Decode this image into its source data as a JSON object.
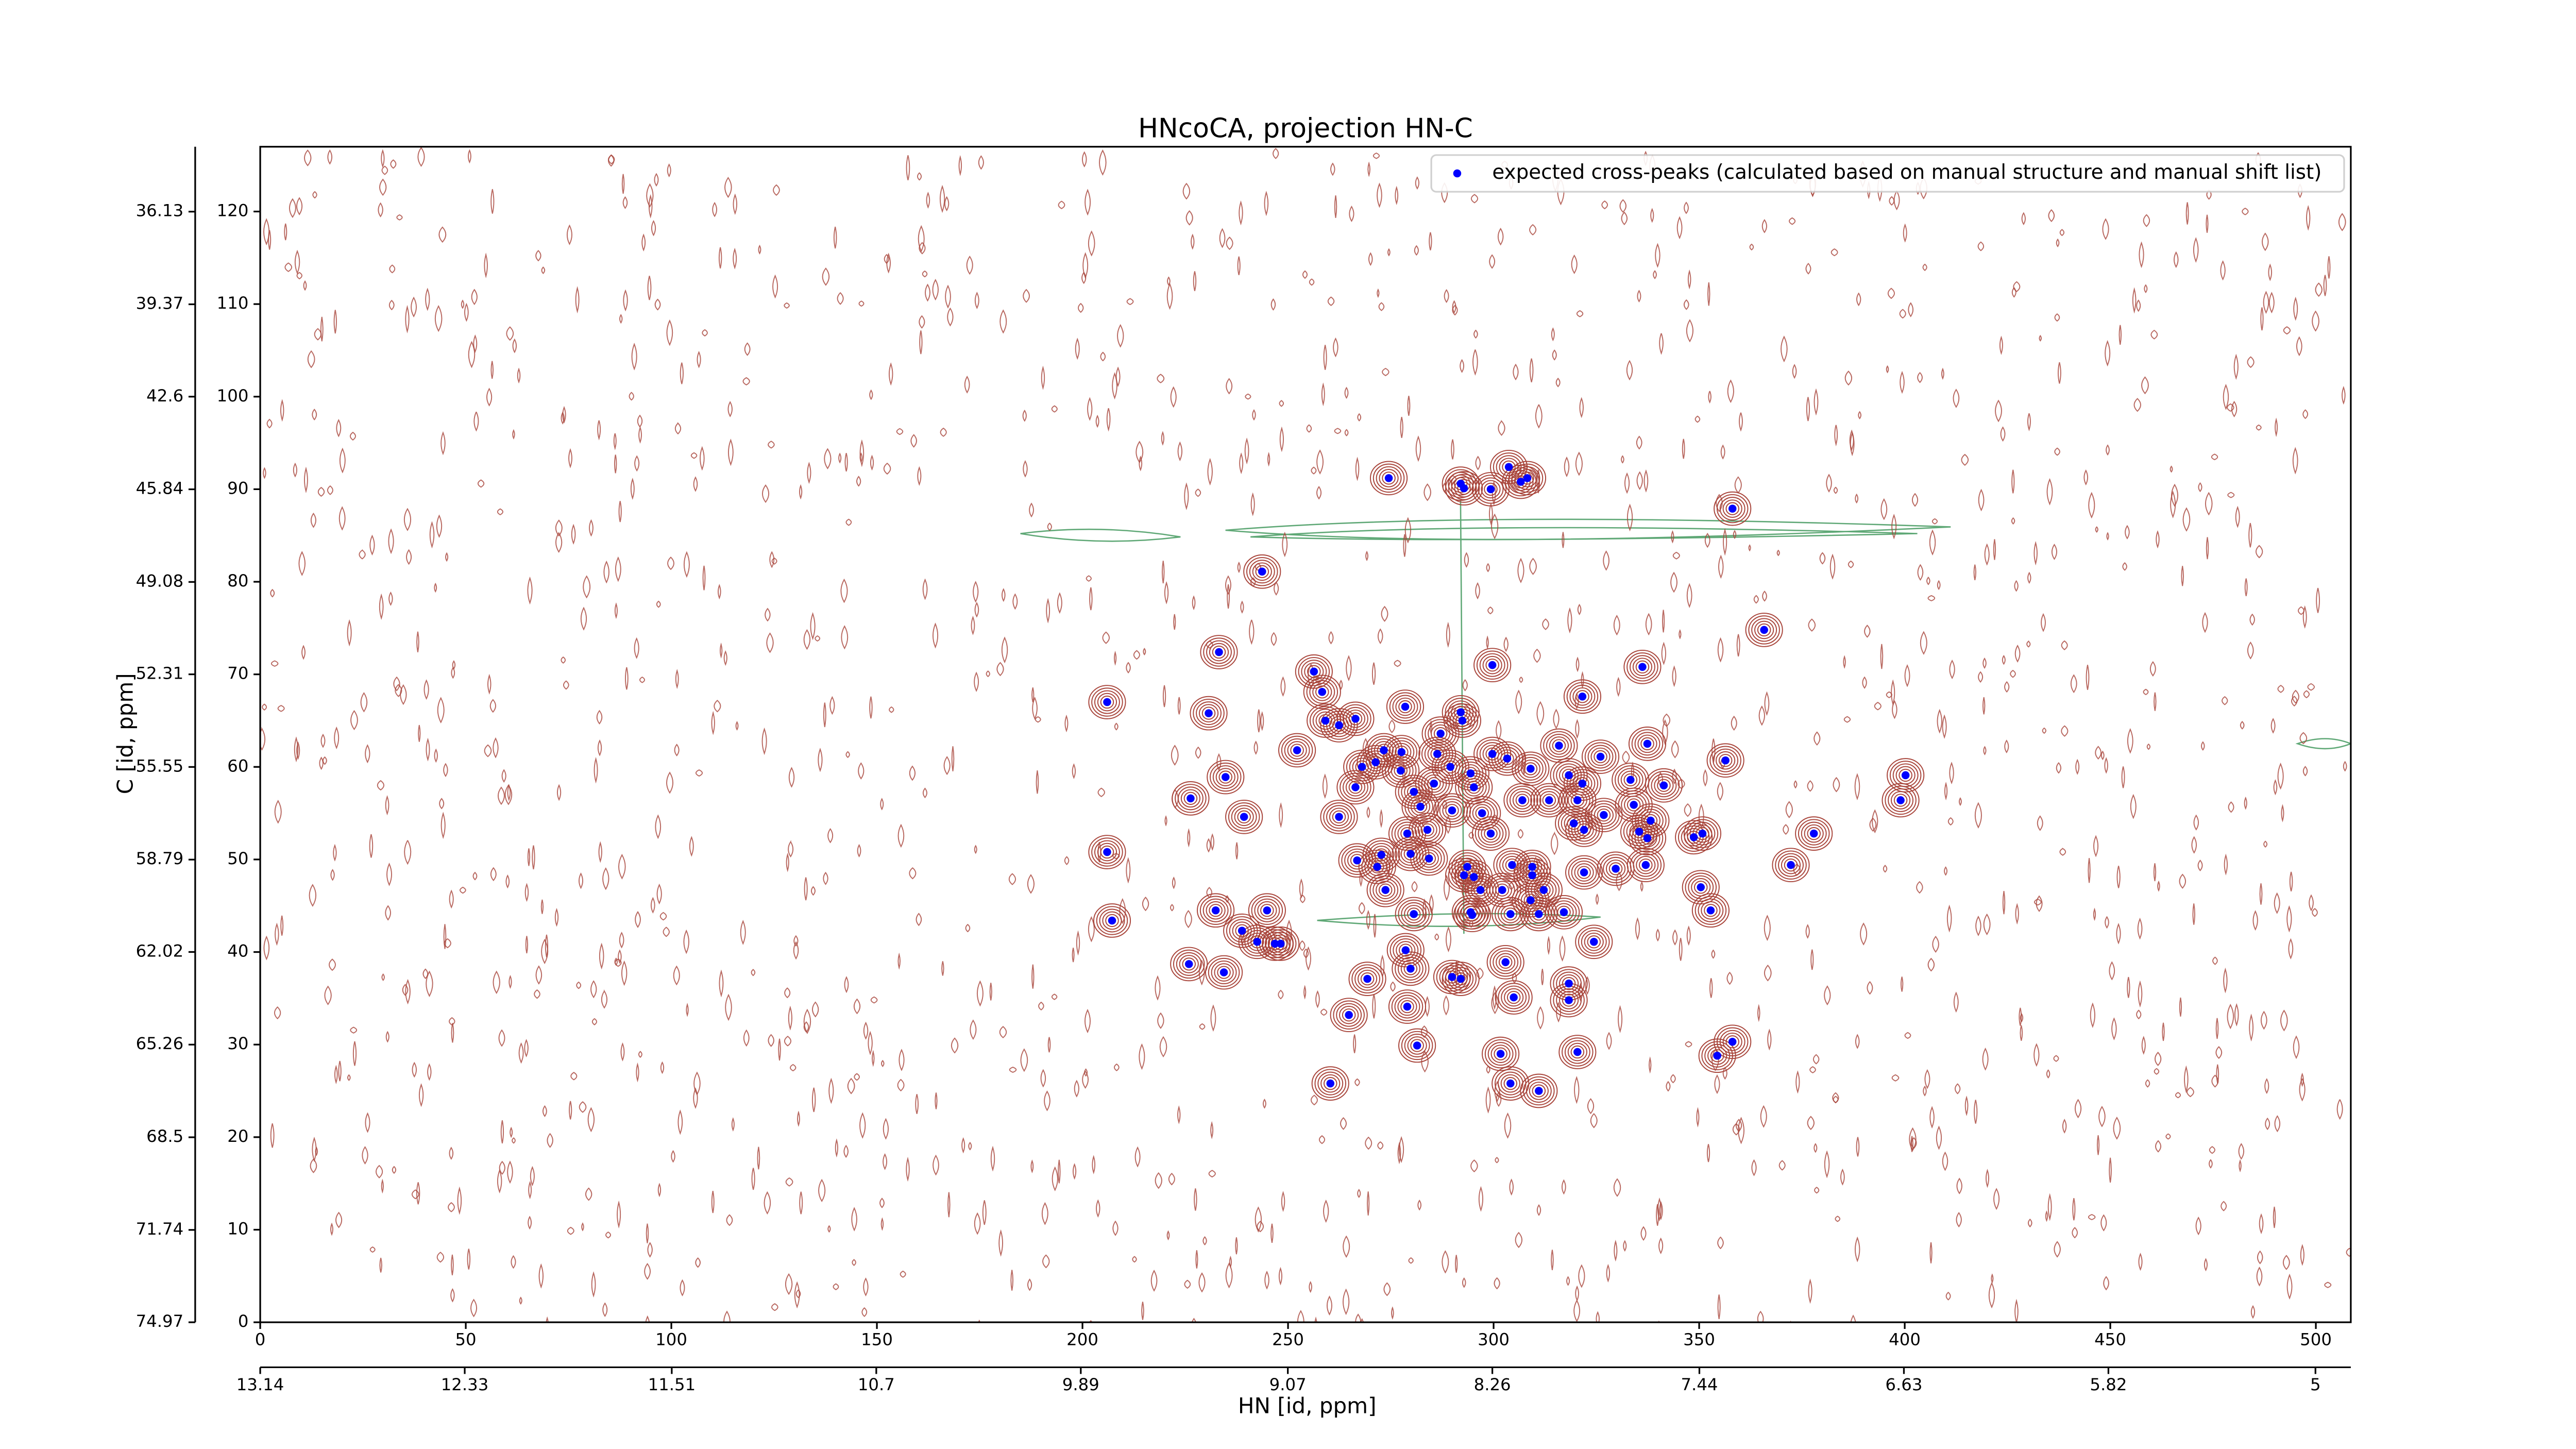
{
  "chart_data": {
    "type": "scatter",
    "title": "HNcoCA, projection HN-C",
    "xlabel": "HN [id, ppm]",
    "ylabel": "C [id, ppm]",
    "xlim": [
      0,
      508.5
    ],
    "xticks": [
      0,
      50,
      100,
      150,
      200,
      250,
      300,
      350,
      400,
      450,
      500
    ],
    "ylim": [
      0,
      127
    ],
    "yticks": [
      0,
      10,
      20,
      30,
      40,
      50,
      60,
      70,
      80,
      90,
      100,
      110,
      120
    ],
    "x2lim": [
      13.14,
      4.86
    ],
    "x2ticks": [
      13.14,
      12.33,
      11.51,
      10.7,
      9.89,
      9.07,
      8.26,
      7.44,
      6.63,
      5.82,
      5.0
    ],
    "y2lim": [
      74.97,
      33.86
    ],
    "y2ticks": [
      74.97,
      71.74,
      68.5,
      65.26,
      62.02,
      58.79,
      55.55,
      52.31,
      49.08,
      45.84,
      42.6,
      39.37,
      36.13
    ],
    "legend": "upper right",
    "series": [
      {
        "name": "expected cross-peaks (calculated based on manual structure and manual shift list)",
        "color": "#0000ff",
        "x": [
          274.5,
          292.0,
          292.8,
          303.7,
          308.2,
          306.6,
          299.3,
          243.7,
          358.1,
          365.8,
          233.2,
          299.7,
          336.2,
          256.3,
          206.0,
          230.7,
          258.3,
          278.5,
          292.0,
          292.4,
          321.6,
          259.1,
          262.4,
          266.4,
          252.2,
          273.3,
          277.6,
          287.1,
          286.3,
          234.8,
          226.3,
          239.3,
          262.4,
          268.0,
          266.4,
          271.3,
          277.4,
          280.6,
          282.2,
          285.5,
          289.5,
          294.4,
          295.2,
          299.7,
          303.3,
          309.0,
          315.9,
          318.3,
          321.6,
          326.0,
          337.4,
          333.3,
          341.4,
          356.4,
          400.2,
          399.0,
          297.2,
          289.9,
          283.9,
          279.0,
          299.3,
          307.0,
          313.5,
          320.4,
          319.5,
          322.0,
          326.8,
          334.1,
          338.2,
          335.4,
          337.4,
          348.7,
          350.8,
          377.9,
          206.0,
          266.8,
          272.7,
          271.7,
          279.8,
          284.3,
          293.6,
          304.5,
          309.4,
          322.0,
          329.7,
          337.0,
          372.3,
          273.7,
          292.8,
          295.2,
          296.8,
          302.1,
          309.4,
          312.2,
          350.4,
          207.2,
          232.4,
          244.9,
          238.8,
          242.5,
          246.8,
          248.2,
          280.6,
          294.4,
          294.8,
          304.1,
          309.0,
          311.0,
          317.1,
          352.8,
          324.4,
          225.9,
          234.4,
          278.6,
          269.3,
          279.8,
          292.0,
          289.9,
          302.9,
          318.3,
          304.9,
          264.8,
          279.0,
          281.4,
          318.3,
          320.4,
          301.7,
          358.1,
          354.4,
          260.3,
          304.1,
          311.0
        ],
        "values": [
          91.2,
          90.6,
          90.1,
          92.4,
          91.2,
          90.8,
          90.0,
          81.1,
          87.9,
          74.8,
          72.4,
          71.0,
          70.8,
          70.3,
          67.0,
          65.8,
          68.1,
          66.5,
          65.9,
          65.0,
          67.6,
          65.0,
          64.5,
          65.2,
          61.8,
          61.8,
          61.6,
          63.6,
          61.4,
          58.9,
          56.6,
          54.6,
          54.6,
          60.0,
          57.8,
          60.5,
          59.6,
          57.3,
          55.7,
          58.2,
          60.0,
          59.3,
          57.8,
          61.4,
          60.9,
          59.8,
          62.3,
          59.1,
          58.2,
          61.1,
          62.5,
          58.6,
          58.0,
          60.7,
          59.1,
          56.4,
          55.0,
          55.3,
          53.2,
          52.8,
          52.8,
          56.4,
          56.4,
          56.4,
          53.9,
          53.2,
          54.8,
          55.9,
          54.2,
          53.0,
          52.3,
          52.4,
          52.8,
          52.8,
          50.8,
          49.9,
          50.5,
          49.2,
          50.6,
          50.1,
          49.2,
          49.4,
          49.2,
          48.6,
          49.0,
          49.4,
          49.4,
          46.7,
          48.3,
          48.1,
          46.7,
          46.7,
          48.3,
          46.7,
          47.0,
          43.4,
          44.5,
          44.5,
          42.3,
          41.1,
          40.9,
          40.9,
          44.1,
          44.3,
          44.0,
          44.1,
          45.6,
          44.1,
          44.3,
          44.5,
          41.1,
          38.7,
          37.8,
          40.2,
          37.1,
          38.2,
          37.1,
          37.3,
          38.9,
          36.6,
          35.1,
          33.2,
          34.1,
          29.9,
          34.8,
          29.2,
          29.0,
          30.3,
          28.8,
          25.8,
          25.8,
          25.0
        ]
      }
    ]
  }
}
